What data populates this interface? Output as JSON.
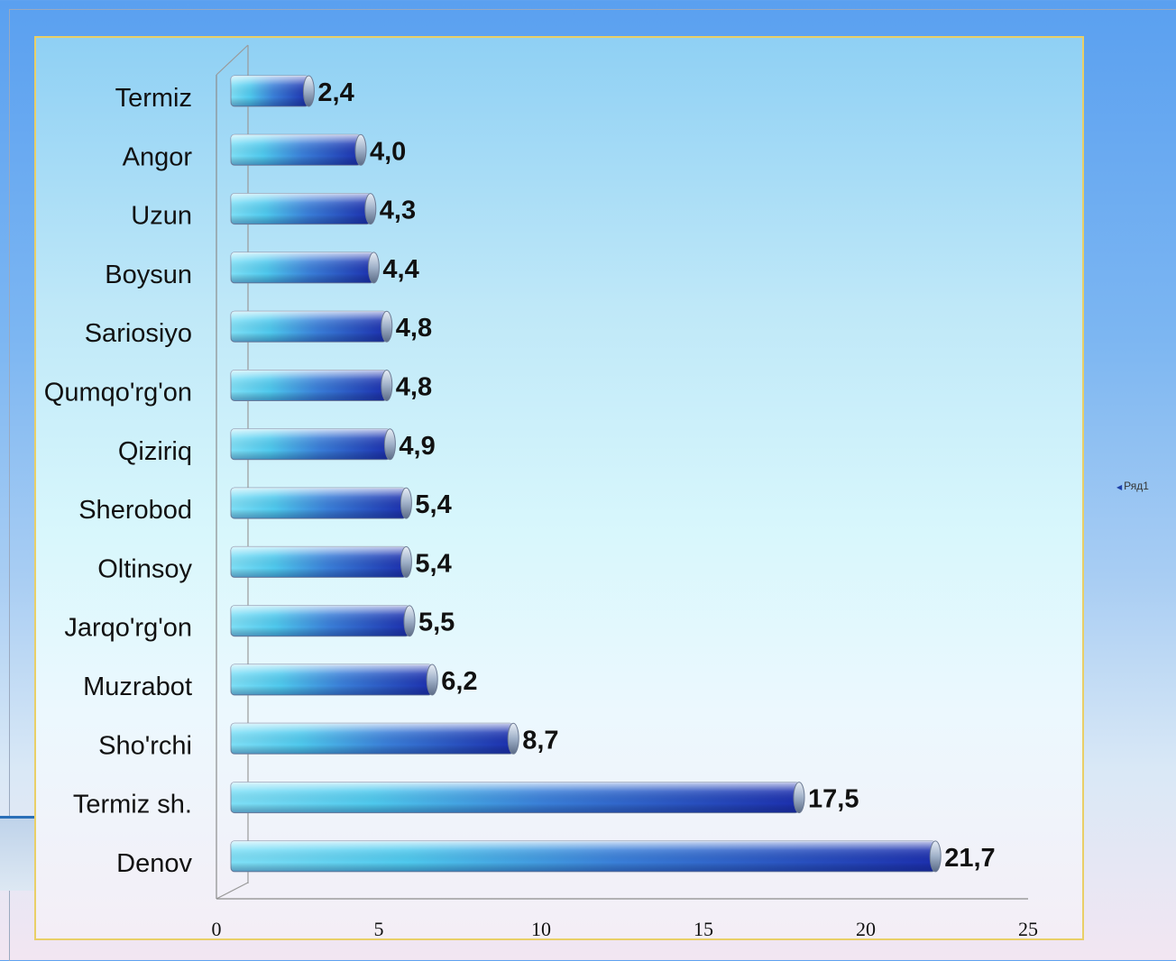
{
  "chart_data": {
    "type": "bar",
    "orientation": "horizontal",
    "categories": [
      "Termiz",
      "Angor",
      "Uzun",
      "Boysun",
      "Sariosiyo",
      "Qumqo'rg'on",
      "Qiziriq",
      "Sherobod",
      "Oltinsoy",
      "Jarqo'rg'on",
      "Muzrabot",
      "Sho'rchi",
      "Termiz sh.",
      "Denov"
    ],
    "series": [
      {
        "name": "Ряд1",
        "values": [
          2.4,
          4.0,
          4.3,
          4.4,
          4.8,
          4.8,
          4.9,
          5.4,
          5.4,
          5.5,
          6.2,
          8.7,
          17.5,
          21.7
        ],
        "labels": [
          "2,4",
          "4,0",
          "4,3",
          "4,4",
          "4,8",
          "4,8",
          "4,9",
          "5,4",
          "5,4",
          "5,5",
          "6,2",
          "8,7",
          "17,5",
          "21,7"
        ]
      }
    ],
    "xlim": [
      0,
      25
    ],
    "x_ticks": [
      "0",
      "5",
      "10",
      "15",
      "20",
      "25"
    ],
    "legend_position": "right",
    "grid": false,
    "colors": {
      "bar_light": "#55d3f2",
      "bar_dark": "#1c2fae",
      "bar_cap": "#cfd8e6",
      "plot_border": "#e9cf67"
    }
  }
}
